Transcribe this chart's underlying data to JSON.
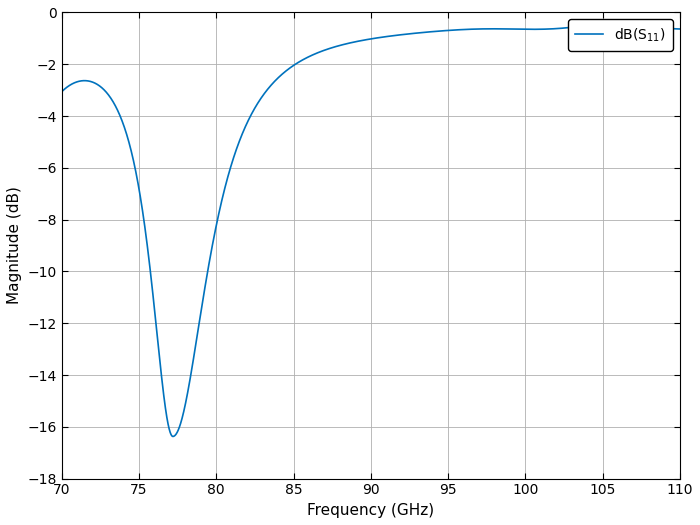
{
  "xlabel": "Frequency (GHz)",
  "ylabel": "Magnitude (dB)",
  "legend_label": "dB(S_{11})",
  "xlim": [
    70,
    110
  ],
  "ylim": [
    -18,
    0
  ],
  "xticks": [
    70,
    75,
    80,
    85,
    90,
    95,
    100,
    105,
    110
  ],
  "yticks": [
    -18,
    -16,
    -14,
    -12,
    -10,
    -8,
    -6,
    -4,
    -2,
    0
  ],
  "line_color": "#0072bd",
  "line_width": 1.2,
  "background_color": "#ffffff",
  "grid_color": "#b0b0b0"
}
